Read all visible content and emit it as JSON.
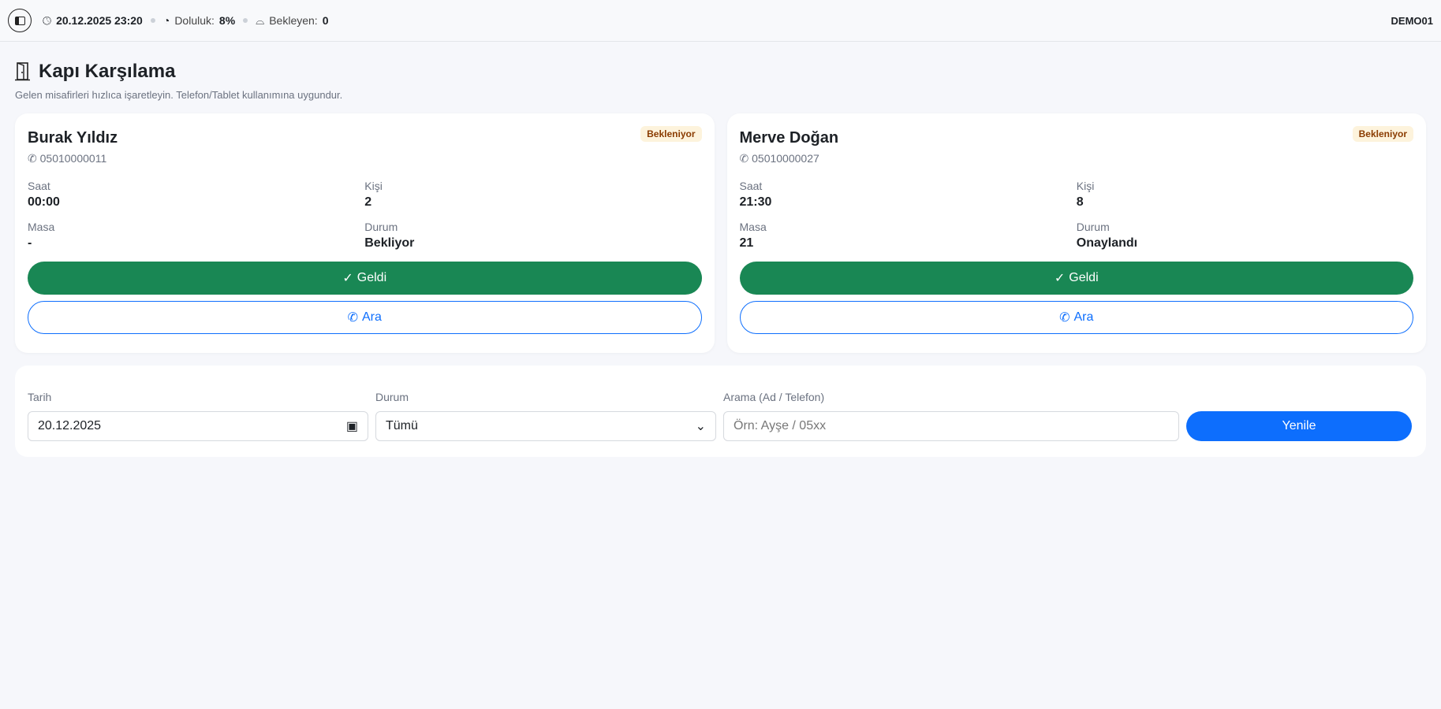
{
  "topbar": {
    "datetime": "20.12.2025 23:20",
    "occupancy_label": "Doluluk:",
    "occupancy_value": "8%",
    "waiting_label": "Bekleyen:",
    "waiting_value": "0",
    "user": "DEMO01"
  },
  "page": {
    "title": "Kapı Karşılama",
    "subtitle": "Gelen misafirleri hızlıca işaretleyin. Telefon/Tablet kullanımına uygundur."
  },
  "labels": {
    "time": "Saat",
    "people": "Kişi",
    "table": "Masa",
    "status": "Durum",
    "arrived": "Geldi",
    "call": "Ara"
  },
  "cards": [
    {
      "name": "Burak Yıldız",
      "phone": "05010000011",
      "badge": "Bekleniyor",
      "time": "00:00",
      "people": "2",
      "table": "-",
      "status": "Bekliyor"
    },
    {
      "name": "Merve Doğan",
      "phone": "05010000027",
      "badge": "Bekleniyor",
      "time": "21:30",
      "people": "8",
      "table": "21",
      "status": "Onaylandı"
    }
  ],
  "filters": {
    "date_label": "Tarih",
    "date_value": "20.12.2025",
    "status_label": "Durum",
    "status_value": "Tümü",
    "search_label": "Arama (Ad / Telefon)",
    "search_placeholder": "Örn: Ayşe / 05xx",
    "refresh": "Yenile"
  },
  "colors": {
    "success": "#198754",
    "primary": "#0d6efd",
    "badge_bg": "#fdf3dc",
    "badge_text": "#8a3b00"
  }
}
